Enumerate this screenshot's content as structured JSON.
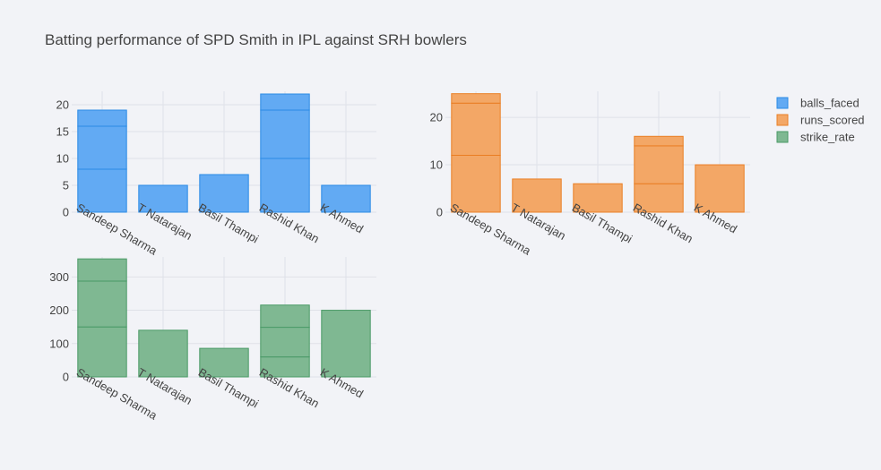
{
  "title": "Batting performance of SPD Smith in IPL against SRH bowlers",
  "legend": {
    "placement": "top-right",
    "items": [
      {
        "label": "balls_faced",
        "fill": "#62aaf3",
        "stroke": "#2a8be6"
      },
      {
        "label": "runs_scored",
        "fill": "#f3a766",
        "stroke": "#ea7f25"
      },
      {
        "label": "strike_rate",
        "fill": "#7fb892",
        "stroke": "#4a9a66"
      }
    ]
  },
  "chart_data": [
    {
      "type": "bar",
      "barmode": "stacked",
      "metric": "balls_faced",
      "categories": [
        "Sandeep Sharma",
        "T Natarajan",
        "Basil Thampi",
        "Rashid Khan",
        "K Ahmed"
      ],
      "segments": [
        [
          8,
          8,
          3
        ],
        [
          5
        ],
        [
          7
        ],
        [
          10,
          9,
          3
        ],
        [
          5
        ]
      ],
      "ylim": [
        0,
        22.5
      ],
      "yticks": [
        0,
        5,
        10,
        15,
        20
      ],
      "grid": true
    },
    {
      "type": "bar",
      "barmode": "stacked",
      "metric": "runs_scored",
      "categories": [
        "Sandeep Sharma",
        "T Natarajan",
        "Basil Thampi",
        "Rashid Khan",
        "K Ahmed"
      ],
      "segments": [
        [
          12,
          11,
          2
        ],
        [
          7
        ],
        [
          6
        ],
        [
          6,
          8,
          2
        ],
        [
          10
        ]
      ],
      "ylim": [
        0,
        25.5
      ],
      "yticks": [
        0,
        10,
        20
      ],
      "grid": true
    },
    {
      "type": "bar",
      "barmode": "stacked",
      "metric": "strike_rate",
      "categories": [
        "Sandeep Sharma",
        "T Natarajan",
        "Basil Thampi",
        "Rashid Khan",
        "K Ahmed"
      ],
      "segments": [
        [
          150,
          137.5,
          66.67
        ],
        [
          140
        ],
        [
          85.71
        ],
        [
          60,
          88.89,
          66.67
        ],
        [
          200
        ]
      ],
      "ylim": [
        0,
        360
      ],
      "yticks": [
        0,
        100,
        200,
        300
      ],
      "grid": true
    }
  ]
}
